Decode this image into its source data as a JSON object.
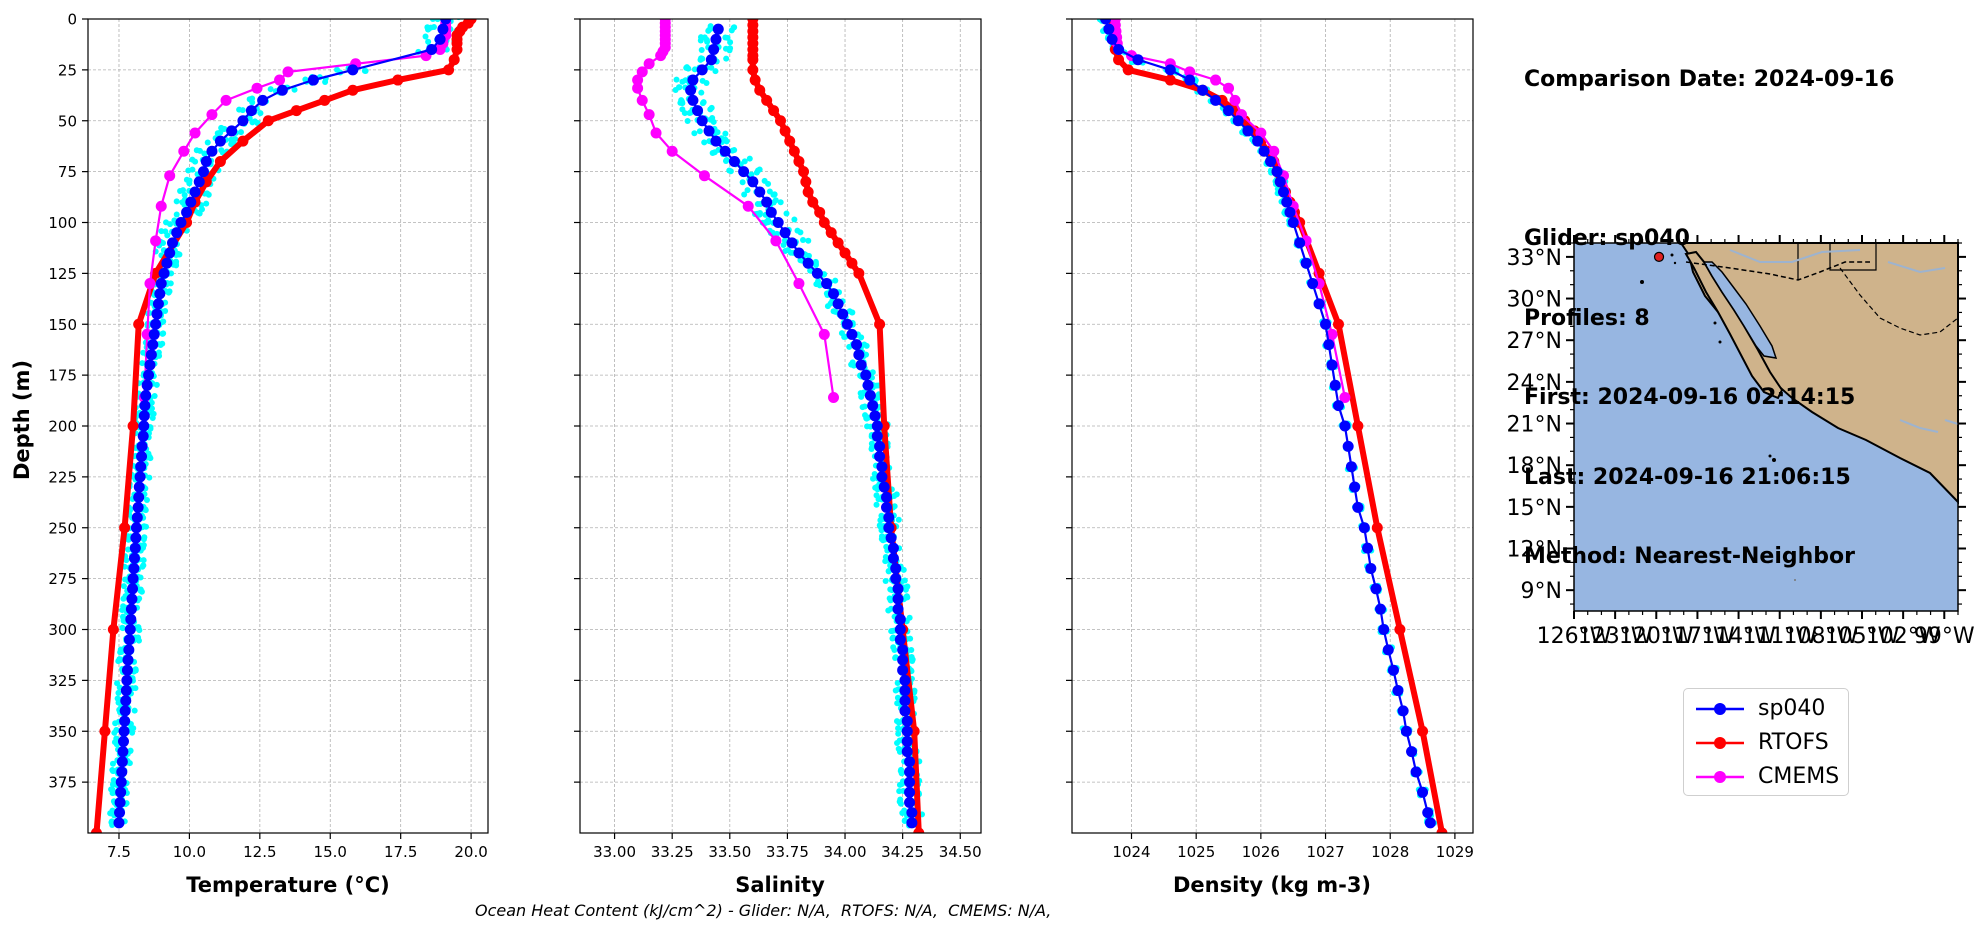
{
  "colors": {
    "glider": "#0000ff",
    "glider_profiles": "#00ffff",
    "rtofs": "#ff0000",
    "cmems": "#ff00ff",
    "ocean": "#97b6e1",
    "land": "#cfb38b"
  },
  "info": {
    "comparison": "Comparison Date: 2024-09-16",
    "glider": "Glider: sp040",
    "profiles": "Profiles: 8",
    "first": "First: 2024-09-16 02:14:15",
    "last": "Last: 2024-09-16 21:06:15",
    "method": "Method: Nearest-Neighbor"
  },
  "legend": [
    {
      "label": "sp040",
      "color": "#0000ff"
    },
    {
      "label": "RTOFS",
      "color": "#ff0000"
    },
    {
      "label": "CMEMS",
      "color": "#ff00ff"
    }
  ],
  "footer": "Ocean Heat Content (kJ/cm^2) - Glider: N/A,  RTOFS: N/A,  CMEMS: N/A,",
  "chart_data": [
    {
      "type": "line",
      "xlabel": "Temperature (°C)",
      "ylabel": "Depth (m)",
      "xlim": [
        6.4,
        20.6
      ],
      "ylim": [
        400,
        0
      ],
      "xticks": [
        7.5,
        10.0,
        12.5,
        15.0,
        17.5,
        20.0
      ],
      "xtick_labels": [
        "7.5",
        "10.0",
        "12.5",
        "15.0",
        "17.5",
        "20.0"
      ],
      "yticks": [
        0,
        25,
        50,
        75,
        100,
        125,
        150,
        175,
        200,
        225,
        250,
        275,
        300,
        325,
        350,
        375
      ],
      "grid": true,
      "series": [
        {
          "name": "sp040",
          "depth": [
            0,
            5,
            10,
            15,
            25,
            30,
            35,
            40,
            45,
            50,
            55,
            60,
            65,
            70,
            75,
            80,
            85,
            90,
            95,
            100,
            105,
            110,
            115,
            120,
            125,
            130,
            135,
            140,
            145,
            150,
            155,
            160,
            165,
            170,
            175,
            180,
            185,
            190,
            195,
            200,
            205,
            210,
            215,
            220,
            225,
            230,
            235,
            240,
            245,
            250,
            255,
            260,
            265,
            270,
            275,
            280,
            285,
            290,
            295,
            300,
            305,
            310,
            315,
            320,
            325,
            330,
            335,
            340,
            345,
            350,
            355,
            360,
            365,
            370,
            375,
            380,
            385,
            390,
            395
          ],
          "values": [
            19.1,
            19.0,
            18.9,
            18.6,
            15.8,
            14.4,
            13.3,
            12.6,
            12.2,
            11.9,
            11.5,
            11.1,
            10.8,
            10.6,
            10.5,
            10.35,
            10.2,
            10.05,
            9.9,
            9.7,
            9.55,
            9.4,
            9.3,
            9.2,
            9.1,
            9.0,
            8.95,
            8.9,
            8.85,
            8.8,
            8.75,
            8.7,
            8.65,
            8.6,
            8.55,
            8.5,
            8.45,
            8.42,
            8.4,
            8.38,
            8.36,
            8.32,
            8.3,
            8.27,
            8.25,
            8.22,
            8.2,
            8.18,
            8.15,
            8.12,
            8.1,
            8.08,
            8.05,
            8.03,
            8.0,
            7.98,
            7.96,
            7.94,
            7.92,
            7.9,
            7.87,
            7.85,
            7.82,
            7.8,
            7.78,
            7.76,
            7.74,
            7.72,
            7.7,
            7.68,
            7.66,
            7.64,
            7.62,
            7.6,
            7.58,
            7.56,
            7.54,
            7.52,
            7.5
          ]
        },
        {
          "name": "RTOFS",
          "depth": [
            0,
            2,
            4,
            6,
            8,
            10,
            12,
            15,
            20,
            25,
            30,
            35,
            40,
            45,
            50,
            60,
            70,
            80,
            90,
            100,
            125,
            150,
            200,
            250,
            300,
            350,
            400
          ],
          "values": [
            20.0,
            19.9,
            19.7,
            19.6,
            19.5,
            19.5,
            19.5,
            19.5,
            19.4,
            19.2,
            17.4,
            15.8,
            14.8,
            13.8,
            12.8,
            11.9,
            11.1,
            10.6,
            10.2,
            9.9,
            8.8,
            8.2,
            8.0,
            7.7,
            7.3,
            7.0,
            6.7
          ]
        },
        {
          "name": "CMEMS",
          "depth": [
            0,
            2,
            4,
            6,
            8,
            10,
            12,
            15,
            18,
            22,
            26,
            30,
            34,
            40,
            47,
            56,
            65,
            77,
            92,
            109,
            130,
            155,
            186
          ],
          "values": [
            19.1,
            19.1,
            19.1,
            19.1,
            19.1,
            19.0,
            19.0,
            18.9,
            18.4,
            15.9,
            13.5,
            13.2,
            12.4,
            11.3,
            10.8,
            10.2,
            9.8,
            9.3,
            9.0,
            8.8,
            8.6,
            8.5,
            8.4
          ]
        }
      ]
    },
    {
      "type": "line",
      "xlabel": "Salinity",
      "xlim": [
        32.85,
        34.59
      ],
      "ylim": [
        400,
        0
      ],
      "xticks": [
        33.0,
        33.25,
        33.5,
        33.75,
        34.0,
        34.25,
        34.5
      ],
      "xtick_labels": [
        "33.00",
        "33.25",
        "33.50",
        "33.75",
        "34.00",
        "34.25",
        "34.50"
      ],
      "grid": true,
      "series": [
        {
          "name": "sp040",
          "depth": [
            5,
            10,
            15,
            20,
            25,
            30,
            35,
            40,
            45,
            50,
            55,
            60,
            65,
            70,
            75,
            80,
            85,
            90,
            95,
            100,
            105,
            110,
            115,
            120,
            125,
            130,
            135,
            140,
            145,
            150,
            155,
            160,
            165,
            170,
            175,
            180,
            185,
            190,
            195,
            200,
            205,
            210,
            215,
            220,
            225,
            230,
            235,
            240,
            245,
            250,
            255,
            260,
            265,
            270,
            275,
            280,
            285,
            290,
            295,
            300,
            305,
            310,
            315,
            320,
            325,
            330,
            335,
            340,
            345,
            350,
            355,
            360,
            365,
            370,
            375,
            380,
            385,
            390,
            395
          ],
          "values": [
            33.45,
            33.44,
            33.43,
            33.42,
            33.38,
            33.34,
            33.33,
            33.34,
            33.36,
            33.38,
            33.41,
            33.44,
            33.48,
            33.52,
            33.56,
            33.6,
            33.63,
            33.66,
            33.68,
            33.71,
            33.74,
            33.77,
            33.8,
            33.84,
            33.88,
            33.92,
            33.95,
            33.97,
            33.99,
            34.01,
            34.03,
            34.05,
            34.06,
            34.07,
            34.09,
            34.1,
            34.11,
            34.12,
            34.13,
            34.14,
            34.14,
            34.15,
            34.15,
            34.16,
            34.16,
            34.17,
            34.18,
            34.18,
            34.19,
            34.19,
            34.2,
            34.21,
            34.21,
            34.22,
            34.22,
            34.23,
            34.23,
            34.23,
            34.24,
            34.24,
            34.24,
            34.25,
            34.25,
            34.25,
            34.26,
            34.26,
            34.26,
            34.26,
            34.27,
            34.27,
            34.27,
            34.27,
            34.28,
            34.28,
            34.28,
            34.28,
            34.28,
            34.29,
            34.29
          ]
        },
        {
          "name": "RTOFS",
          "depth": [
            0,
            3,
            6,
            9,
            12,
            15,
            18,
            20,
            25,
            30,
            35,
            40,
            45,
            50,
            55,
            60,
            65,
            70,
            75,
            80,
            85,
            90,
            95,
            100,
            105,
            110,
            115,
            120,
            125,
            150,
            200,
            250,
            300,
            350,
            400
          ],
          "values": [
            33.6,
            33.6,
            33.6,
            33.6,
            33.6,
            33.6,
            33.6,
            33.6,
            33.6,
            33.61,
            33.63,
            33.66,
            33.69,
            33.72,
            33.74,
            33.76,
            33.78,
            33.8,
            33.82,
            33.83,
            33.84,
            33.86,
            33.89,
            33.91,
            33.94,
            33.97,
            34.0,
            34.03,
            34.06,
            34.15,
            34.17,
            34.2,
            34.25,
            34.3,
            34.32
          ]
        },
        {
          "name": "CMEMS",
          "depth": [
            0,
            2,
            4,
            6,
            8,
            10,
            12,
            14,
            16,
            18,
            22,
            26,
            30,
            34,
            40,
            47,
            56,
            65,
            77,
            92,
            109,
            130,
            155,
            186
          ],
          "values": [
            33.22,
            33.22,
            33.22,
            33.22,
            33.22,
            33.22,
            33.22,
            33.22,
            33.21,
            33.2,
            33.15,
            33.12,
            33.1,
            33.1,
            33.12,
            33.15,
            33.18,
            33.25,
            33.39,
            33.58,
            33.7,
            33.8,
            33.91,
            33.95
          ]
        }
      ]
    },
    {
      "type": "line",
      "xlabel": "Density (kg m-3)",
      "xlim": [
        1023.08,
        1029.28
      ],
      "ylim": [
        400,
        0
      ],
      "xticks": [
        1024,
        1025,
        1026,
        1027,
        1028,
        1029
      ],
      "xtick_labels": [
        "1024",
        "1025",
        "1026",
        "1027",
        "1028",
        "1029"
      ],
      "grid": true,
      "series": [
        {
          "name": "sp040",
          "depth": [
            0,
            5,
            10,
            15,
            20,
            25,
            30,
            35,
            40,
            45,
            50,
            55,
            60,
            65,
            70,
            75,
            80,
            85,
            90,
            95,
            100,
            110,
            120,
            130,
            140,
            150,
            160,
            170,
            180,
            190,
            200,
            210,
            220,
            230,
            240,
            250,
            260,
            270,
            280,
            290,
            300,
            310,
            320,
            330,
            340,
            350,
            360,
            370,
            380,
            390,
            395
          ],
          "values": [
            1023.6,
            1023.65,
            1023.7,
            1023.8,
            1024.1,
            1024.6,
            1024.9,
            1025.1,
            1025.3,
            1025.5,
            1025.65,
            1025.8,
            1025.95,
            1026.05,
            1026.15,
            1026.25,
            1026.3,
            1026.35,
            1026.4,
            1026.45,
            1026.5,
            1026.6,
            1026.7,
            1026.8,
            1026.9,
            1027.0,
            1027.05,
            1027.1,
            1027.15,
            1027.2,
            1027.3,
            1027.35,
            1027.4,
            1027.45,
            1027.5,
            1027.6,
            1027.65,
            1027.7,
            1027.78,
            1027.85,
            1027.9,
            1027.97,
            1028.05,
            1028.12,
            1028.2,
            1028.25,
            1028.33,
            1028.4,
            1028.5,
            1028.58,
            1028.62
          ]
        },
        {
          "name": "RTOFS",
          "depth": [
            0,
            5,
            10,
            15,
            20,
            25,
            30,
            35,
            40,
            45,
            50,
            55,
            60,
            65,
            70,
            75,
            80,
            85,
            90,
            95,
            100,
            125,
            150,
            200,
            250,
            300,
            350,
            400
          ],
          "values": [
            1023.7,
            1023.7,
            1023.72,
            1023.75,
            1023.8,
            1023.95,
            1024.6,
            1025.1,
            1025.4,
            1025.6,
            1025.75,
            1025.9,
            1026.0,
            1026.1,
            1026.2,
            1026.25,
            1026.3,
            1026.38,
            1026.45,
            1026.52,
            1026.6,
            1026.9,
            1027.2,
            1027.5,
            1027.8,
            1028.15,
            1028.5,
            1028.8
          ]
        },
        {
          "name": "CMEMS",
          "depth": [
            0,
            3,
            6,
            9,
            12,
            15,
            18,
            22,
            26,
            30,
            34,
            40,
            47,
            56,
            65,
            77,
            92,
            109,
            130,
            155,
            186
          ],
          "values": [
            1023.75,
            1023.75,
            1023.76,
            1023.77,
            1023.78,
            1023.8,
            1024.0,
            1024.6,
            1024.9,
            1025.3,
            1025.5,
            1025.6,
            1025.7,
            1026.0,
            1026.2,
            1026.35,
            1026.5,
            1026.7,
            1026.9,
            1027.1,
            1027.3
          ]
        }
      ]
    },
    {
      "type": "map",
      "ylabels": [
        "33°N",
        "30°N",
        "27°N",
        "24°N",
        "21°N",
        "18°N",
        "15°N",
        "12°N",
        "9°N"
      ],
      "xlabels": [
        "126°W",
        "123°W",
        "120°W",
        "117°W",
        "114°W",
        "111°W",
        "108°W",
        "105°W",
        "102°W",
        "99°W"
      ],
      "lon_range": [
        -126,
        -98
      ],
      "lat_range": [
        7.5,
        34
      ],
      "glider_position": {
        "lon": -119.8,
        "lat": 33.0
      }
    }
  ]
}
